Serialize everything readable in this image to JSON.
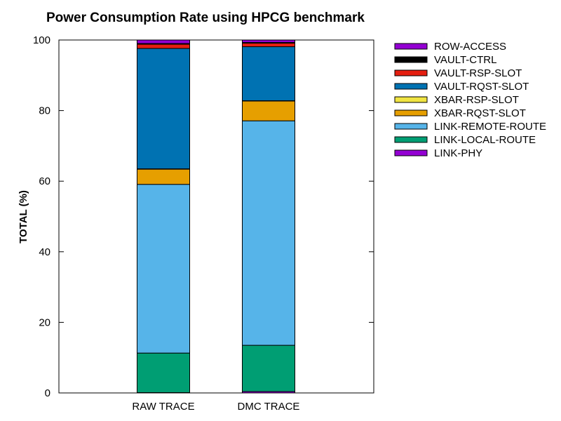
{
  "chart_data": {
    "type": "bar",
    "stacked": true,
    "title": "Power Consumption Rate using HPCG benchmark",
    "xlabel": "",
    "ylabel": "TOTAL (%)",
    "ylim": [
      0,
      100
    ],
    "yticks": [
      0,
      20,
      40,
      60,
      80,
      100
    ],
    "grid": false,
    "legend_position": "top-right, outside plot",
    "categories": [
      "RAW TRACE",
      "DMC TRACE"
    ],
    "series": [
      {
        "name": "LINK-PHY",
        "color": "#9400d3",
        "values": [
          0.1,
          0.4
        ]
      },
      {
        "name": "LINK-LOCAL-ROUTE",
        "color": "#009e73",
        "values": [
          11.2,
          13.1
        ]
      },
      {
        "name": "LINK-REMOTE-ROUTE",
        "color": "#56b4e9",
        "values": [
          47.8,
          63.6
        ]
      },
      {
        "name": "XBAR-RQST-SLOT",
        "color": "#e69f00",
        "values": [
          4.3,
          5.6
        ]
      },
      {
        "name": "XBAR-RSP-SLOT",
        "color": "#f0e442",
        "values": [
          0.1,
          0.1
        ]
      },
      {
        "name": "VAULT-RQST-SLOT",
        "color": "#0072b2",
        "values": [
          34.1,
          15.3
        ]
      },
      {
        "name": "VAULT-RSP-SLOT",
        "color": "#e51e10",
        "values": [
          1.2,
          1.0
        ]
      },
      {
        "name": "VAULT-CTRL",
        "color": "#000000",
        "values": [
          0.2,
          0.2
        ]
      },
      {
        "name": "ROW-ACCESS",
        "color": "#9400d3",
        "values": [
          1.0,
          0.7
        ]
      }
    ]
  }
}
